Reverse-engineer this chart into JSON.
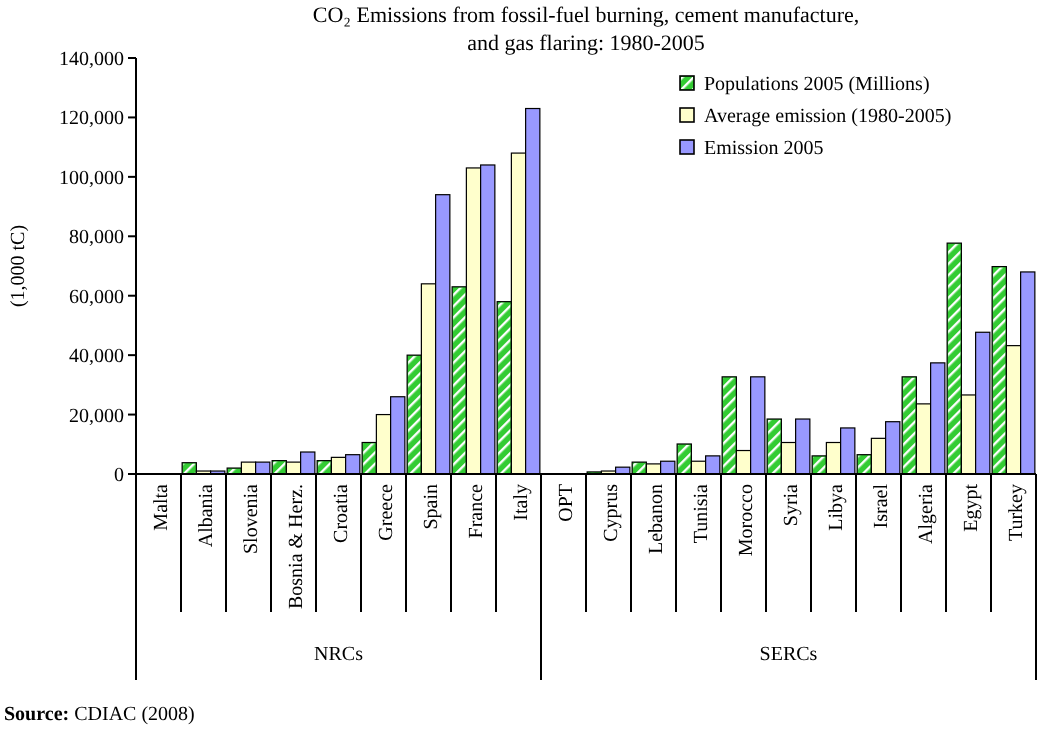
{
  "chart_data": {
    "type": "bar",
    "title": "CO₂ Emissions from fossil-fuel burning, cement manufacture, and gas flaring: 1980-2005",
    "ylabel": "(1,000 tC)",
    "categories": [
      "Malta",
      "Albania",
      "Slovenia",
      "Bosnia & Herz.",
      "Croatia",
      "Greece",
      "Spain",
      "France",
      "Italy",
      "OPT",
      "Cyprus",
      "Lebanon",
      "Tunisia",
      "Morocco",
      "Syria",
      "Libya",
      "Israel",
      "Algeria",
      "Egypt",
      "Turkey"
    ],
    "series": [
      {
        "name": "Populations 2005 (Millions)",
        "color": "#33cc33",
        "values": [
          null,
          3800,
          2000,
          4500,
          4500,
          10600,
          40000,
          63000,
          58000,
          0,
          700,
          4000,
          10100,
          32700,
          18500,
          6100,
          6500,
          32700,
          77700,
          69800
        ]
      },
      {
        "name": "Average emission (1980-2005)",
        "color": "#ffffcc",
        "values": [
          null,
          1000,
          4000,
          4000,
          5600,
          20000,
          64000,
          103000,
          108000,
          0,
          1000,
          3400,
          4300,
          7900,
          10600,
          10600,
          12000,
          23600,
          26600,
          43200
        ]
      },
      {
        "name": "Emission 2005",
        "color": "#9999ff",
        "values": [
          null,
          1000,
          4000,
          7400,
          6500,
          26000,
          94000,
          104000,
          123000,
          0,
          2300,
          4300,
          6100,
          32700,
          18500,
          15500,
          17600,
          37400,
          47700,
          68000
        ]
      }
    ],
    "ylim": [
      0,
      140000
    ],
    "yticks": [
      {
        "value": 0,
        "label": "0"
      },
      {
        "value": 20000,
        "label": "20,000"
      },
      {
        "value": 40000,
        "label": "40,000"
      },
      {
        "value": 60000,
        "label": "60,000"
      },
      {
        "value": 80000,
        "label": "80,000"
      },
      {
        "value": 100000,
        "label": "100,000"
      },
      {
        "value": 120000,
        "label": "120,000"
      },
      {
        "value": 140000,
        "label": "140,000"
      }
    ],
    "legend": "top right",
    "annotations": [
      "NRCs",
      "SERCs",
      "Source: CDIAC (2008)"
    ]
  }
}
